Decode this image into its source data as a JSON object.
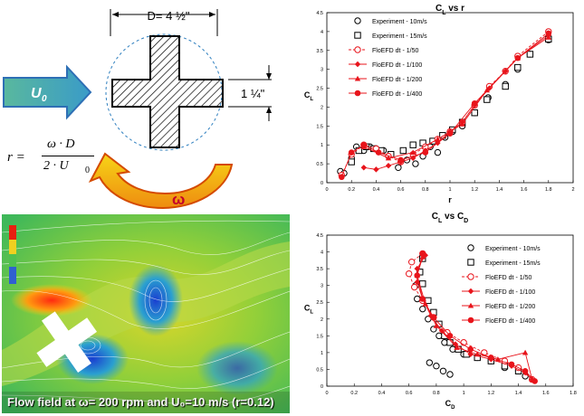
{
  "diagram": {
    "diameter_label": "D= 4 ½\"",
    "width_label": "1 ¼\"",
    "u0_label": "U",
    "u0_sub": "0",
    "omega_label": "ω",
    "formula_r": "r =",
    "formula_num": "ω · D",
    "formula_den_a": "2 · U",
    "formula_den_sub": "0",
    "colors": {
      "arrow_fill": "#5bb9a6",
      "arrow_edge": "#2e6fb5",
      "curl_fill": "#f5c400",
      "curl_edge": "#d44a00"
    }
  },
  "flow_field": {
    "caption": "Flow field at ω= 200 rpm and U₀=10 m/s (r=0.12)"
  },
  "chart_data": [
    {
      "type": "scatter",
      "title": "CL vs r",
      "title_main": "C",
      "title_sub": "L",
      "title_rest": " vs r",
      "xlabel": "r",
      "ylabel_main": "C",
      "ylabel_sub": "L",
      "xlim": [
        0,
        2
      ],
      "ylim": [
        0,
        4.5
      ],
      "xticks": [
        "0",
        "0.2",
        "0.4",
        "0.6",
        "0.8",
        "1",
        "1.2",
        "1.4",
        "1.6",
        "1.8",
        "2"
      ],
      "yticks": [
        "0",
        "0.5",
        "1",
        "1.5",
        "2",
        "2.5",
        "3",
        "3.5",
        "4",
        "4.5"
      ],
      "legend_position": "top-right",
      "series": [
        {
          "name": "Experiment - 10m/s",
          "marker": "open-circle",
          "color": "#000000",
          "x": [
            0.11,
            0.14,
            0.2,
            0.24,
            0.3,
            0.35,
            0.4,
            0.46,
            0.52,
            0.58,
            0.65,
            0.72,
            0.78,
            0.84,
            0.9,
            0.96,
            1.02,
            1.1,
            1.2,
            1.31,
            1.45,
            1.55,
            1.65,
            1.8
          ],
          "y": [
            0.3,
            0.25,
            0.65,
            0.95,
            0.85,
            0.95,
            0.9,
            0.85,
            0.75,
            0.4,
            0.6,
            0.5,
            0.7,
            0.95,
            0.8,
            1.2,
            1.35,
            1.5,
            1.85,
            2.25,
            2.6,
            3.0,
            3.4,
            3.78
          ]
        },
        {
          "name": "Experiment - 15m/s",
          "marker": "open-square",
          "color": "#000000",
          "x": [
            0.2,
            0.26,
            0.32,
            0.38,
            0.44,
            0.52,
            0.62,
            0.7,
            0.78,
            0.86,
            0.94,
            1.02,
            1.1,
            1.2,
            1.3,
            1.45,
            1.55,
            1.65,
            1.8
          ],
          "y": [
            0.55,
            0.85,
            0.95,
            0.9,
            0.85,
            0.75,
            0.85,
            1.0,
            1.05,
            1.1,
            1.25,
            1.4,
            1.6,
            1.85,
            2.2,
            2.55,
            3.05,
            3.4,
            3.8
          ]
        },
        {
          "name": "FloEFD dt - 1/50",
          "marker": "open-circle",
          "line": "dashed",
          "color": "#e8141b",
          "x": [
            0.12,
            0.2,
            0.3,
            0.4,
            0.5,
            0.6,
            0.7,
            0.8,
            0.9,
            1.0,
            1.1,
            1.2,
            1.32,
            1.45,
            1.55,
            1.8
          ],
          "y": [
            0.2,
            0.75,
            1.0,
            0.9,
            0.7,
            0.55,
            0.75,
            0.95,
            1.15,
            1.35,
            1.6,
            2.05,
            2.55,
            2.95,
            3.35,
            4.0
          ]
        },
        {
          "name": "FloEFD dt - 1/100",
          "marker": "filled-diamond",
          "line": "solid",
          "color": "#e8141b",
          "x": [
            0.3,
            0.4,
            0.5,
            0.6,
            0.7,
            0.8,
            0.9,
            1.0,
            1.1,
            1.2,
            1.32,
            1.45,
            1.55,
            1.8
          ],
          "y": [
            0.4,
            0.35,
            0.45,
            0.55,
            0.65,
            0.85,
            1.05,
            1.35,
            1.6,
            2.05,
            2.5,
            2.95,
            3.3,
            3.9
          ]
        },
        {
          "name": "FloEFD dt - 1/200",
          "marker": "filled-triangle",
          "line": "solid",
          "color": "#e8141b",
          "x": [
            0.3,
            0.5,
            0.7,
            0.9,
            1.1,
            1.3,
            1.55,
            1.8
          ],
          "y": [
            0.95,
            0.65,
            0.8,
            1.15,
            1.55,
            2.45,
            3.3,
            3.85
          ]
        },
        {
          "name": "FloEFD dt - 1/400",
          "marker": "filled-circle",
          "line": "solid",
          "color": "#e8141b",
          "x": [
            0.12,
            0.2,
            0.3,
            0.42,
            0.6,
            0.8,
            1.0,
            1.2,
            1.55,
            1.8
          ],
          "y": [
            0.15,
            0.8,
            1.0,
            0.8,
            0.6,
            0.8,
            1.3,
            2.1,
            3.3,
            3.95
          ]
        }
      ]
    },
    {
      "type": "scatter",
      "title": "CL vs CD",
      "title_main": "C",
      "title_sub": "L",
      "title_rest": " vs C",
      "title_sub2": "D",
      "xlabel_main": "C",
      "xlabel_sub": "D",
      "ylabel_main": "C",
      "ylabel_sub": "L",
      "xlim": [
        0,
        1.8
      ],
      "ylim": [
        0,
        4.5
      ],
      "xticks": [
        "0",
        "0.2",
        "0.4",
        "0.6",
        "0.8",
        "1",
        "1.2",
        "1.4",
        "1.6",
        "1.8"
      ],
      "yticks": [
        "0",
        "0.5",
        "1",
        "1.5",
        "2",
        "2.5",
        "3",
        "3.5",
        "4",
        "4.5"
      ],
      "legend_position": "top-right",
      "series": [
        {
          "name": "Experiment - 10m/s",
          "marker": "open-circle",
          "color": "#000000",
          "x": [
            0.7,
            0.68,
            0.65,
            0.66,
            0.7,
            0.74,
            0.78,
            0.82,
            0.86,
            0.92,
            1.0,
            1.1,
            1.2,
            1.3,
            1.4,
            1.45,
            0.75,
            0.8,
            0.85,
            0.9
          ],
          "y": [
            3.85,
            3.4,
            3.0,
            2.6,
            2.3,
            2.0,
            1.7,
            1.5,
            1.3,
            1.1,
            0.95,
            0.85,
            0.75,
            0.55,
            0.45,
            0.3,
            0.7,
            0.6,
            0.45,
            0.35
          ]
        },
        {
          "name": "Experiment - 15m/s",
          "marker": "open-square",
          "color": "#000000",
          "x": [
            0.7,
            0.68,
            0.7,
            0.74,
            0.78,
            0.82,
            0.86,
            0.9,
            0.96,
            1.02,
            1.1,
            1.2,
            1.3,
            1.4
          ],
          "y": [
            3.8,
            3.4,
            3.05,
            2.55,
            2.2,
            1.85,
            1.5,
            1.3,
            1.1,
            0.95,
            0.85,
            0.75,
            0.6,
            0.45
          ]
        },
        {
          "name": "FloEFD dt - 1/50",
          "marker": "open-circle",
          "line": "dashed",
          "color": "#e8141b",
          "x": [
            0.7,
            0.62,
            0.6,
            0.64,
            0.7,
            0.78,
            0.88,
            1.0,
            1.15,
            1.3,
            1.4,
            1.5
          ],
          "y": [
            3.95,
            3.7,
            3.35,
            2.95,
            2.55,
            2.05,
            1.6,
            1.3,
            1.0,
            0.75,
            0.55,
            0.2
          ]
        },
        {
          "name": "FloEFD dt - 1/100",
          "marker": "filled-diamond",
          "line": "solid",
          "color": "#e8141b",
          "x": [
            0.72,
            0.66,
            0.66,
            0.7,
            0.76,
            0.84,
            0.94,
            1.05,
            1.2,
            1.35,
            1.45,
            1.5
          ],
          "y": [
            3.9,
            3.5,
            3.1,
            2.6,
            2.1,
            1.65,
            1.25,
            0.95,
            0.8,
            0.6,
            0.4,
            0.2
          ]
        },
        {
          "name": "FloEFD dt - 1/200",
          "marker": "filled-triangle",
          "line": "solid",
          "color": "#e8141b",
          "x": [
            0.7,
            0.66,
            0.72,
            0.8,
            0.95,
            1.1,
            1.25,
            1.45,
            1.5
          ],
          "y": [
            3.85,
            3.3,
            2.45,
            1.8,
            1.15,
            0.95,
            0.8,
            1.0,
            0.2
          ]
        },
        {
          "name": "FloEFD dt - 1/400",
          "marker": "filled-circle",
          "line": "solid",
          "color": "#e8141b",
          "x": [
            0.7,
            0.66,
            0.7,
            0.78,
            0.9,
            1.05,
            1.2,
            1.35,
            1.45,
            1.52
          ],
          "y": [
            3.95,
            3.3,
            2.6,
            2.05,
            1.5,
            1.1,
            0.85,
            0.65,
            0.45,
            0.15
          ]
        }
      ]
    }
  ]
}
